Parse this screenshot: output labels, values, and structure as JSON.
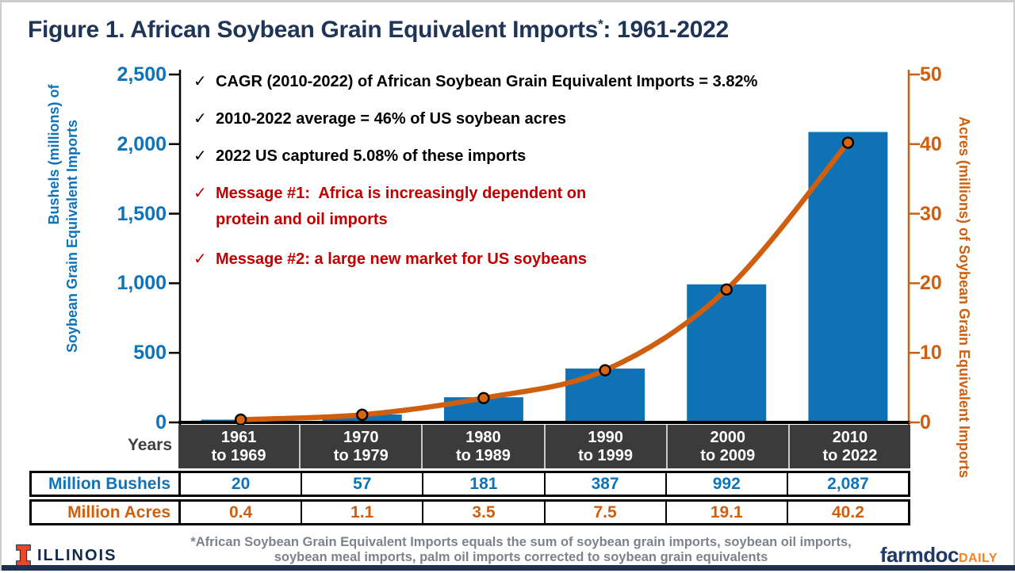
{
  "title": {
    "main": "Figure 1. African Soybean Grain Equivalent Imports",
    "sup": "*",
    "suffix": ": 1961-2022"
  },
  "annotations": {
    "check": "✓",
    "items": [
      {
        "text": "CAGR (2010-2022) of African Soybean Grain Equivalent Imports = 3.82%",
        "style": "black"
      },
      {
        "text": "2010-2022 average = 46% of US soybean acres",
        "style": "black"
      },
      {
        "text": "2022 US captured 5.08% of these imports",
        "style": "black"
      },
      {
        "text": "Message #1:  Africa is increasingly dependent on",
        "text2": "protein and oil imports",
        "style": "red"
      },
      {
        "text": "Message #2: a large new market for US soybeans",
        "style": "red"
      }
    ]
  },
  "chart_data": {
    "type": "bar+line",
    "categories": [
      "1961 to 1969",
      "1970 to 1979",
      "1980 to 1989",
      "1990 to 1999",
      "2000 to 2009",
      "2010 to 2022"
    ],
    "x_label": "Years",
    "series": [
      {
        "name": "Million Bushels",
        "chart": "bar",
        "axis": "left",
        "values": [
          20,
          57,
          181,
          387,
          992,
          2087
        ],
        "color": "#0E72B4"
      },
      {
        "name": "Million Acres",
        "chart": "line",
        "axis": "right",
        "values": [
          0.4,
          1.1,
          3.5,
          7.5,
          19.1,
          40.2
        ],
        "color": "#CF5F0E"
      }
    ],
    "left_axis": {
      "title_line1": "Bushels (millions) of",
      "title_line2": "Soybean Grain Equivalent Imports",
      "min": 0,
      "max": 2500,
      "ticks": [
        2500,
        2000,
        1500,
        1000,
        500,
        0
      ],
      "tick_labels": [
        "2,500",
        "2,000",
        "1,500",
        "1,000",
        "500",
        "0"
      ],
      "color": "#0E73B9"
    },
    "right_axis": {
      "title": "Acres (millions) of Soybean Grain Equivalent Imports",
      "min": 0,
      "max": 50,
      "ticks": [
        50,
        40,
        30,
        20,
        10,
        0
      ],
      "tick_labels": [
        "50",
        "40",
        "30",
        "20",
        "10",
        "0"
      ],
      "color": "#CF5F0E"
    },
    "grid": false,
    "legend_position": "none",
    "marker": {
      "shape": "circle",
      "fill": "#D9660E",
      "stroke": "#000000"
    }
  },
  "table": {
    "years_header": [
      {
        "line1": "1961",
        "line2": "to 1969"
      },
      {
        "line1": "1970",
        "line2": "to 1979"
      },
      {
        "line1": "1980",
        "line2": "to 1989"
      },
      {
        "line1": "1990",
        "line2": "to 1999"
      },
      {
        "line1": "2000",
        "line2": "to 2009"
      },
      {
        "line1": "2010",
        "line2": "to 2022"
      }
    ],
    "rows": [
      {
        "label": "Million Bushels",
        "values": [
          "20",
          "57",
          "181",
          "387",
          "992",
          "2,087"
        ]
      },
      {
        "label": "Million Acres",
        "values": [
          "0.4",
          "1.1",
          "3.5",
          "7.5",
          "19.1",
          "40.2"
        ]
      }
    ]
  },
  "footer": {
    "footnote_line1": "*African Soybean Grain Equivalent Imports equals the sum of soybean grain imports, soybean oil imports,",
    "footnote_line2": "soybean meal imports, palm oil imports corrected to soybean grain equivalents",
    "university": "ILLINOIS",
    "brand_main": "farmdoc",
    "brand_accent": "DAILY"
  },
  "colors": {
    "navy": "#1F3557",
    "blue": "#0E72B4",
    "orange": "#CF5F0E",
    "red": "#C00000",
    "band_bg": "#3B3B3B",
    "footnote_gray": "#7E828C",
    "illinois_orange": "#E84A27",
    "daily_orange": "#F5821F"
  }
}
